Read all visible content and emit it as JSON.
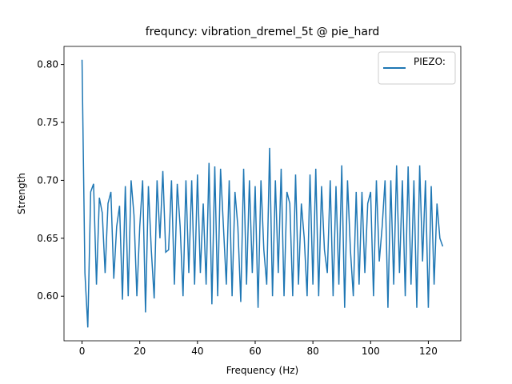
{
  "chart_data": {
    "type": "line",
    "title": "frequncy: vibration_dremel_5t @ pie_hard",
    "x_label": "Frequency (Hz)",
    "y_label": "Strength",
    "x": [
      0,
      1,
      2,
      3,
      4,
      5,
      6,
      7,
      8,
      9,
      10,
      11,
      12,
      13,
      14,
      15,
      16,
      17,
      18,
      19,
      20,
      21,
      22,
      23,
      24,
      25,
      26,
      27,
      28,
      29,
      30,
      31,
      32,
      33,
      34,
      35,
      36,
      37,
      38,
      39,
      40,
      41,
      42,
      43,
      44,
      45,
      46,
      47,
      48,
      49,
      50,
      51,
      52,
      53,
      54,
      55,
      56,
      57,
      58,
      59,
      60,
      61,
      62,
      63,
      64,
      65,
      66,
      67,
      68,
      69,
      70,
      71,
      72,
      73,
      74,
      75,
      76,
      77,
      78,
      79,
      80,
      81,
      82,
      83,
      84,
      85,
      86,
      87,
      88,
      89,
      90,
      91,
      92,
      93,
      94,
      95,
      96,
      97,
      98,
      99,
      100,
      101,
      102,
      103,
      104,
      105,
      106,
      107,
      108,
      109,
      110,
      111,
      112,
      113,
      114,
      115,
      116,
      117,
      118,
      119,
      120,
      121,
      122,
      123,
      124,
      125
    ],
    "series": [
      {
        "name": "PIEZO:",
        "color": "#1f77b4",
        "values": [
          0.804,
          0.62,
          0.573,
          0.69,
          0.697,
          0.61,
          0.685,
          0.672,
          0.62,
          0.68,
          0.69,
          0.615,
          0.66,
          0.678,
          0.597,
          0.695,
          0.6,
          0.7,
          0.67,
          0.6,
          0.66,
          0.7,
          0.586,
          0.695,
          0.64,
          0.598,
          0.7,
          0.65,
          0.708,
          0.638,
          0.64,
          0.7,
          0.61,
          0.697,
          0.66,
          0.6,
          0.7,
          0.62,
          0.7,
          0.61,
          0.705,
          0.62,
          0.68,
          0.61,
          0.715,
          0.593,
          0.712,
          0.6,
          0.71,
          0.66,
          0.61,
          0.7,
          0.6,
          0.69,
          0.66,
          0.595,
          0.71,
          0.61,
          0.7,
          0.62,
          0.695,
          0.59,
          0.7,
          0.64,
          0.61,
          0.728,
          0.6,
          0.7,
          0.62,
          0.71,
          0.6,
          0.69,
          0.68,
          0.6,
          0.705,
          0.61,
          0.68,
          0.65,
          0.6,
          0.705,
          0.61,
          0.71,
          0.6,
          0.695,
          0.64,
          0.62,
          0.7,
          0.6,
          0.695,
          0.61,
          0.713,
          0.59,
          0.7,
          0.64,
          0.6,
          0.69,
          0.61,
          0.69,
          0.62,
          0.68,
          0.69,
          0.6,
          0.7,
          0.63,
          0.66,
          0.7,
          0.59,
          0.7,
          0.61,
          0.713,
          0.62,
          0.7,
          0.6,
          0.712,
          0.61,
          0.7,
          0.59,
          0.713,
          0.63,
          0.7,
          0.59,
          0.695,
          0.61,
          0.68,
          0.65,
          0.643
        ]
      }
    ],
    "xlim": [
      -6.25,
      131.25
    ],
    "xticks": [
      0,
      20,
      40,
      60,
      80,
      100,
      120
    ],
    "ylim": [
      0.5615,
      0.8156
    ],
    "yticks": [
      {
        "value": 0.6,
        "label": "0.60"
      },
      {
        "value": 0.65,
        "label": "0.65"
      },
      {
        "value": 0.7,
        "label": "0.70"
      },
      {
        "value": 0.75,
        "label": "0.75"
      },
      {
        "value": 0.8,
        "label": "0.80"
      }
    ],
    "legend": "upper right"
  }
}
